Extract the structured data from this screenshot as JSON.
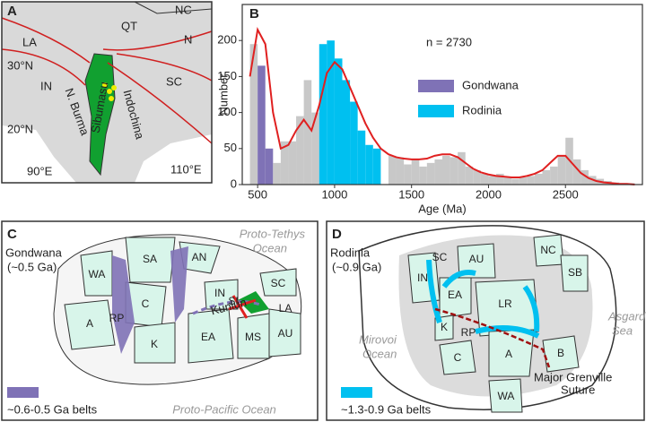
{
  "chart_data": {
    "type": "histogram",
    "title": "B",
    "annotation": "n = 2730",
    "x_label": "Age (Ma)",
    "y_label": "Number",
    "bins": [
      450,
      500,
      550,
      600,
      650,
      700,
      750,
      800,
      850,
      900,
      950,
      1000,
      1050,
      1100,
      1150,
      1200,
      1250,
      1300,
      1350,
      1400,
      1450,
      1500,
      1550,
      1600,
      1650,
      1700,
      1750,
      1800,
      1850,
      1900,
      1950,
      2000,
      2050,
      2100,
      2150,
      2200,
      2250,
      2300,
      2350,
      2400,
      2450,
      2500,
      2550,
      2600,
      2650,
      2700,
      2750,
      2800,
      2850,
      2900,
      2950
    ],
    "color": "#c8c8c8",
    "values": [
      195,
      null,
      null,
      30,
      60,
      60,
      95,
      145,
      100,
      null,
      null,
      null,
      null,
      null,
      null,
      null,
      null,
      null,
      40,
      38,
      28,
      35,
      25,
      30,
      35,
      40,
      38,
      45,
      25,
      20,
      15,
      12,
      15,
      10,
      8,
      10,
      12,
      15,
      20,
      25,
      40,
      65,
      35,
      20,
      12,
      8,
      5,
      3,
      2,
      2
    ],
    "series": [
      {
        "name": "Gondwana",
        "color": "#7f72b6",
        "values": [
          null,
          165,
          50,
          null,
          null,
          null,
          null,
          null,
          null,
          null,
          null,
          null,
          null,
          null,
          null,
          null,
          null,
          null,
          null,
          null,
          null,
          null,
          null,
          null,
          null,
          null,
          null,
          null,
          null,
          null,
          null,
          null,
          null,
          null,
          null,
          null,
          null,
          null,
          null,
          null,
          null,
          null,
          null,
          null,
          null,
          null,
          null,
          null,
          null,
          null
        ]
      },
      {
        "name": "Rodinia",
        "color": "#00c0f0",
        "values": [
          null,
          null,
          null,
          null,
          null,
          null,
          null,
          null,
          null,
          195,
          200,
          175,
          145,
          115,
          75,
          55,
          50,
          null,
          null,
          null,
          null,
          null,
          null,
          null,
          null,
          null,
          null,
          null,
          null,
          null,
          null,
          null,
          null,
          null,
          null,
          null,
          null,
          null,
          null,
          null,
          null,
          null,
          null,
          null,
          null,
          null,
          null,
          null,
          null,
          null
        ]
      }
    ],
    "curve": {
      "color": "#e02020",
      "x": [
        450,
        500,
        550,
        600,
        650,
        700,
        750,
        800,
        850,
        900,
        950,
        1000,
        1050,
        1100,
        1150,
        1200,
        1250,
        1300,
        1350,
        1400,
        1450,
        1500,
        1550,
        1600,
        1650,
        1700,
        1750,
        1800,
        1850,
        1900,
        1950,
        2000,
        2050,
        2100,
        2150,
        2200,
        2250,
        2300,
        2350,
        2400,
        2450,
        2500,
        2550,
        2600,
        2650,
        2700,
        2750,
        2800,
        2850,
        2900,
        2950
      ],
      "values": [
        150,
        215,
        195,
        100,
        50,
        55,
        75,
        90,
        75,
        110,
        155,
        170,
        160,
        135,
        110,
        85,
        65,
        50,
        42,
        38,
        36,
        35,
        35,
        36,
        40,
        42,
        42,
        38,
        30,
        22,
        17,
        14,
        12,
        11,
        10,
        10,
        12,
        15,
        20,
        30,
        40,
        40,
        28,
        16,
        9,
        5,
        3,
        2,
        1,
        1,
        0
      ]
    },
    "xlim": [
      400,
      3000
    ],
    "xticks": [
      500,
      1000,
      1500,
      2000,
      2500
    ],
    "ylim": [
      0,
      250
    ],
    "yticks": [
      0,
      50,
      100,
      150,
      200
    ]
  },
  "panel_a": {
    "letter": "A",
    "labels": [
      "QT",
      "NC",
      "LA",
      "IN",
      "SC",
      "30°N",
      "20°N",
      "90°E",
      "110°E",
      "N. Burma",
      "Sibumasu",
      "Indochina",
      "N"
    ]
  },
  "panel_c": {
    "letter": "C",
    "title": [
      "Gondwana",
      "(~0.5 Ga)"
    ],
    "ocean_top": [
      "Proto-Tethys",
      "Ocean"
    ],
    "ocean_bottom": "Proto-Pacific Ocean",
    "blocks": [
      "WA",
      "SA",
      "AN",
      "A",
      "C",
      "IN",
      "SI",
      "SC",
      "LA",
      "RP",
      "K",
      "EA",
      "MS",
      "AU",
      "Kunlun"
    ],
    "legend": "~0.6-0.5 Ga belts"
  },
  "panel_d": {
    "letter": "D",
    "title": [
      "Rodinia",
      "(~0.9 Ga)"
    ],
    "ocean_right": [
      "Asgard",
      "Sea"
    ],
    "ocean_left": [
      "Mirovoi",
      "Ocean"
    ],
    "blocks": [
      "SC",
      "AU",
      "NC",
      "SB",
      "IN",
      "EA",
      "LR",
      "K",
      "RP",
      "C",
      "A",
      "B",
      "WA"
    ],
    "legend": "~1.3-0.9 Ga belts",
    "suture": [
      "Major Grenville",
      "Suture"
    ]
  }
}
